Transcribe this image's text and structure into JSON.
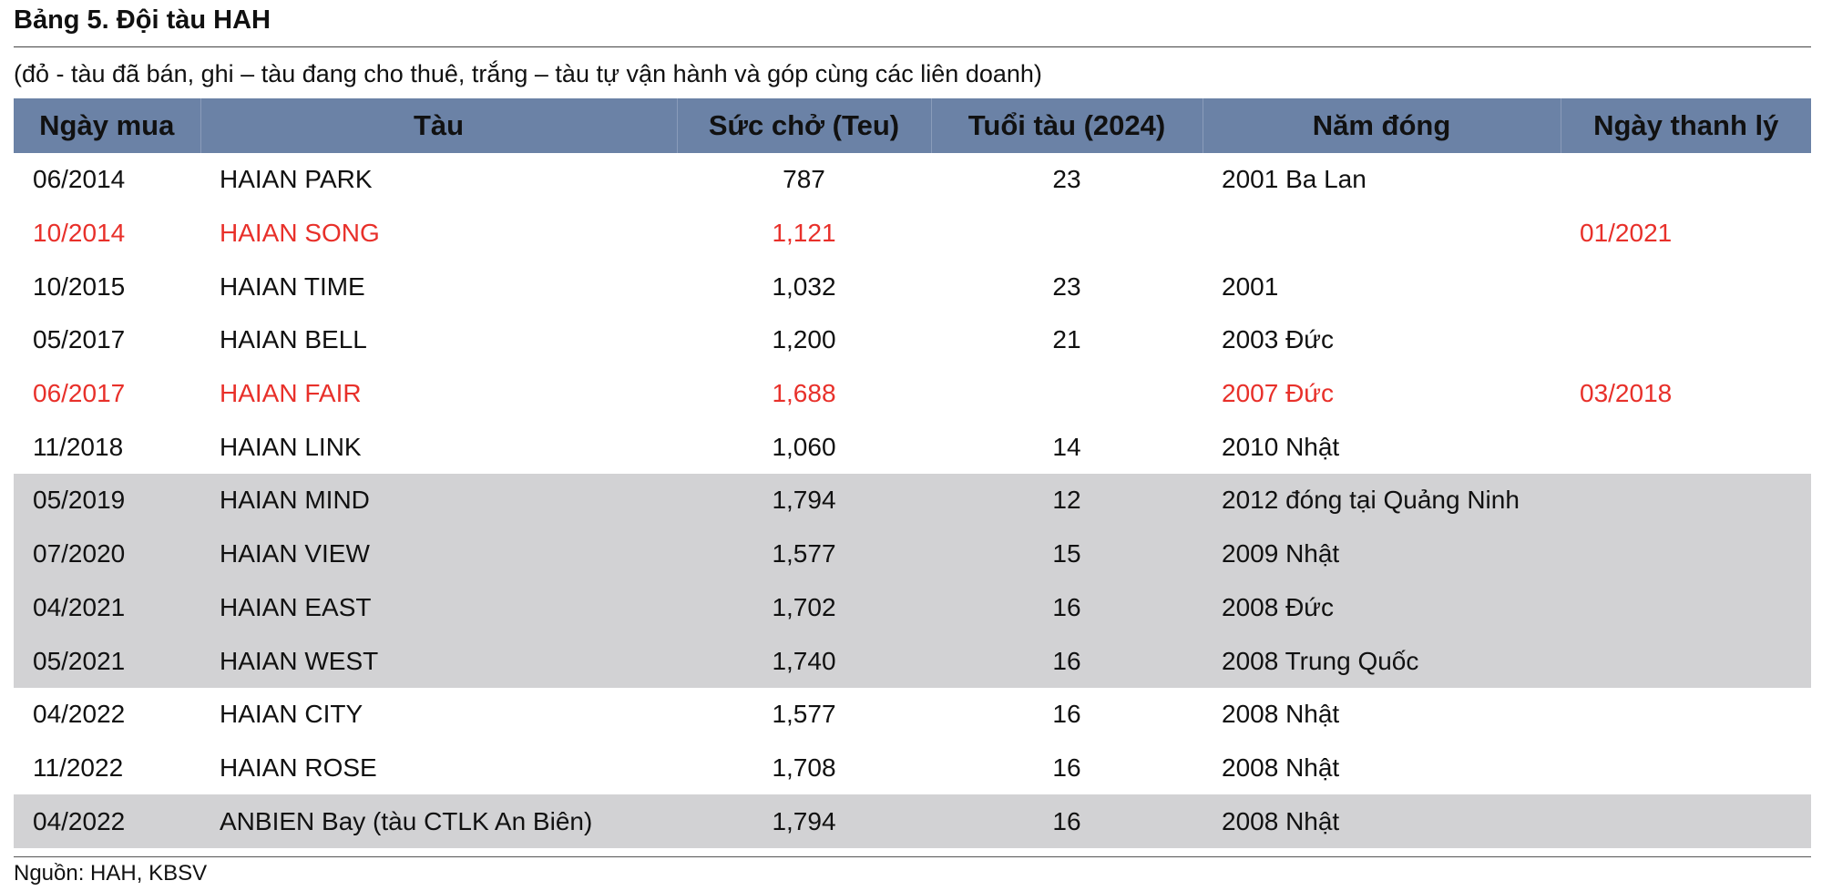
{
  "header": {
    "title": "Bảng 5. Đội tàu HAH",
    "subtitle": "(đỏ - tàu đã bán, ghi – tàu đang cho thuê, trắng – tàu tự vận hành và góp cùng các liên doanh)"
  },
  "table": {
    "header_color": "#6b82a6",
    "columns": [
      "Ngày mua",
      "Tàu",
      "Sức chở (Teu)",
      "Tuổi tàu (2024)",
      "Năm đóng",
      "Ngày thanh lý"
    ],
    "rows": [
      {
        "cells": [
          "06/2014",
          "HAIAN PARK",
          "787",
          "23",
          "2001 Ba Lan",
          null
        ],
        "color": "#111111",
        "background": "#ffffff"
      },
      {
        "cells": [
          "10/2014",
          "HAIAN SONG",
          "1,121",
          null,
          null,
          "01/2021"
        ],
        "color": "#e8302a",
        "background": "#ffffff"
      },
      {
        "cells": [
          "10/2015",
          "HAIAN TIME",
          "1,032",
          "23",
          "2001",
          null
        ],
        "color": "#111111",
        "background": "#ffffff"
      },
      {
        "cells": [
          "05/2017",
          "HAIAN BELL",
          "1,200",
          "21",
          "2003 Đức",
          null
        ],
        "color": "#111111",
        "background": "#ffffff"
      },
      {
        "cells": [
          "06/2017",
          "HAIAN FAIR",
          "1,688",
          null,
          "2007 Đức",
          "03/2018"
        ],
        "color": "#e8302a",
        "background": "#ffffff"
      },
      {
        "cells": [
          "11/2018",
          "HAIAN LINK",
          "1,060",
          "14",
          "2010 Nhật",
          null
        ],
        "color": "#111111",
        "background": "#ffffff"
      },
      {
        "cells": [
          "05/2019",
          "HAIAN MIND",
          "1,794",
          "12",
          "2012 đóng tại Quảng Ninh",
          null
        ],
        "color": "#111111",
        "background": "#d2d2d4"
      },
      {
        "cells": [
          "07/2020",
          "HAIAN VIEW",
          "1,577",
          "15",
          "2009 Nhật",
          null
        ],
        "color": "#111111",
        "background": "#d2d2d4"
      },
      {
        "cells": [
          "04/2021",
          "HAIAN EAST",
          "1,702",
          "16",
          "2008 Đức",
          null
        ],
        "color": "#111111",
        "background": "#d2d2d4"
      },
      {
        "cells": [
          "05/2021",
          "HAIAN WEST",
          "1,740",
          "16",
          "2008 Trung Quốc",
          null
        ],
        "color": "#111111",
        "background": "#d2d2d4"
      },
      {
        "cells": [
          "04/2022",
          "HAIAN CITY",
          "1,577",
          "16",
          "2008 Nhật",
          null
        ],
        "color": "#111111",
        "background": "#ffffff"
      },
      {
        "cells": [
          "11/2022",
          "HAIAN ROSE",
          "1,708",
          "16",
          "2008 Nhật",
          null
        ],
        "color": "#111111",
        "background": "#ffffff"
      },
      {
        "cells": [
          "04/2022",
          "ANBIEN Bay (tàu CTLK An Biên)",
          "1,794",
          "16",
          "2008 Nhật",
          null
        ],
        "color": "#111111",
        "background": "#d2d2d4"
      }
    ]
  },
  "footer": {
    "source": "Nguồn: HAH, KBSV"
  }
}
